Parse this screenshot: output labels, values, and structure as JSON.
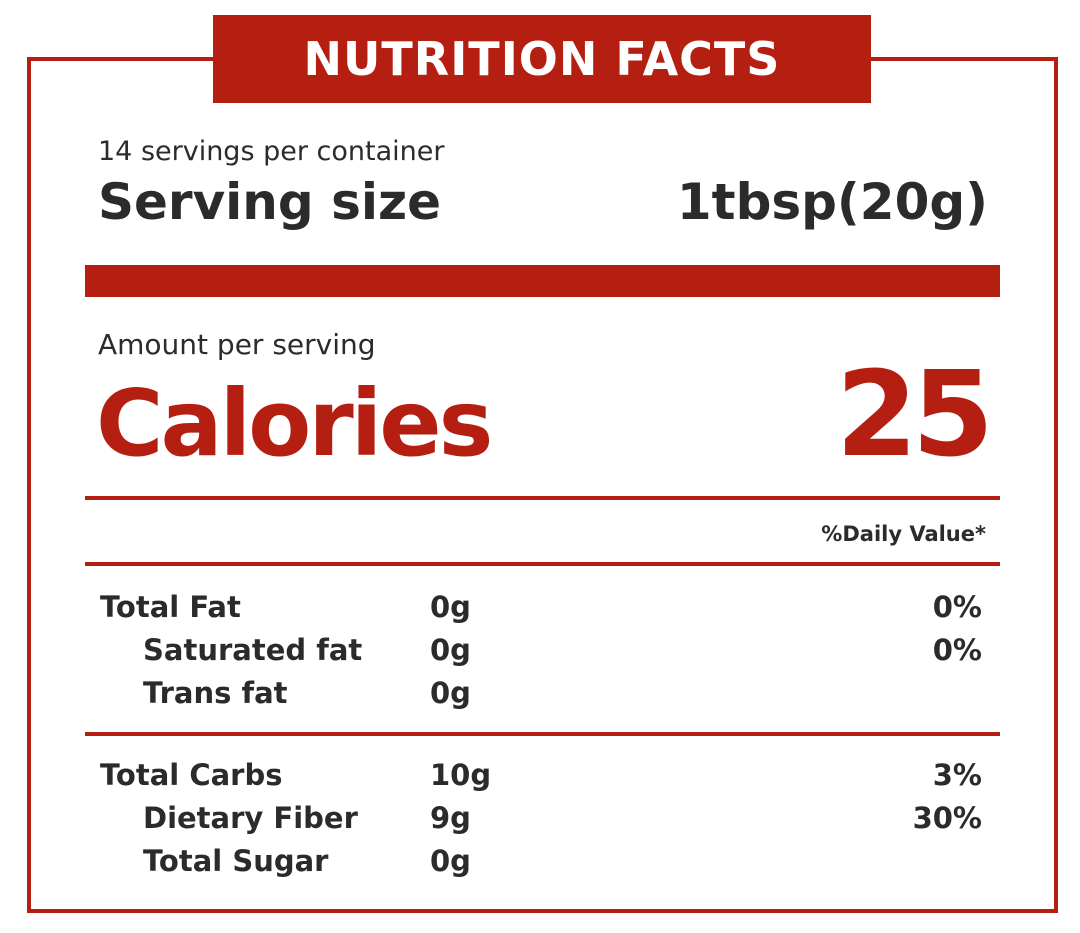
{
  "label": {
    "title": "NUTRITION FACTS",
    "servings_per_container": "14 servings per container",
    "serving_size_label": "Serving size",
    "serving_size_value": "1tbsp(20g)",
    "amount_per_serving": "Amount per serving",
    "calories_label": "Calories",
    "calories_value": "25",
    "daily_value_header": "%Daily Value*"
  },
  "nutrients": [
    {
      "name": "Total Fat",
      "amount": "0g",
      "dv": "0%"
    },
    {
      "name": "Saturated fat",
      "amount": "0g",
      "dv": "0%"
    },
    {
      "name": "Trans fat",
      "amount": "0g",
      "dv": ""
    },
    {
      "name": "Total Carbs",
      "amount": "10g",
      "dv": "3%"
    },
    {
      "name": "Dietary Fiber",
      "amount": "9g",
      "dv": "30%"
    },
    {
      "name": "Total Sugar",
      "amount": "0g",
      "dv": ""
    }
  ],
  "colors": {
    "accent": "#b51f12",
    "text": "#2b2b2b",
    "background": "#ffffff"
  }
}
